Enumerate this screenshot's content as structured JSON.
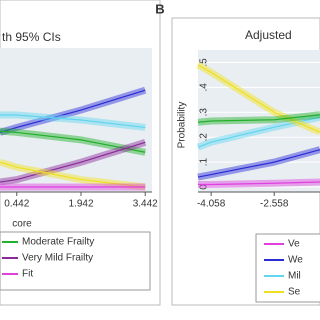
{
  "chart_data": [
    {
      "type": "line",
      "title": "th 95% CIs",
      "x_label": "core",
      "x": [
        0.05,
        0.442,
        1.942,
        3.442
      ],
      "xlim": [
        0.05,
        3.6
      ],
      "xticks": [
        0.442,
        1.942,
        3.442
      ],
      "ylim": [
        0,
        0.58
      ],
      "series": [
        {
          "color": "#2b2bd6",
          "values": [
            0.24,
            0.26,
            0.33,
            0.41
          ]
        },
        {
          "color": "#62d4f0",
          "values": [
            0.31,
            0.31,
            0.29,
            0.26
          ]
        },
        {
          "name": "Moderate Frailty",
          "color": "#22b02a",
          "values": [
            0.245,
            0.24,
            0.21,
            0.16
          ]
        },
        {
          "name": "Very Mild Frailty",
          "color": "#8a2a9a",
          "values": [
            0.04,
            0.05,
            0.12,
            0.2
          ]
        },
        {
          "color": "#f0e020",
          "values": [
            0.12,
            0.1,
            0.05,
            0.02
          ]
        },
        {
          "name": "Fit",
          "color": "#e040e0",
          "values": [
            0.02,
            0.02,
            0.02,
            0.02
          ]
        }
      ]
    },
    {
      "type": "line",
      "panel_label": "B",
      "title": "Adjusted",
      "y_label": "Probability",
      "x": [
        -4.37,
        -4.058,
        -2.558,
        -1.47
      ],
      "xlim": [
        -4.37,
        -1.47
      ],
      "xticks": [
        -4.058,
        -2.558
      ],
      "ylim": [
        -0.02,
        0.55
      ],
      "yticks": [
        0,
        {
          "value": 0.1,
          "label": ".1"
        },
        {
          "value": 0.2,
          "label": ".2"
        },
        {
          "value": 0.3,
          "label": ".3"
        },
        {
          "value": 0.4,
          "label": ".4"
        },
        {
          "value": 0.5,
          "label": ".5"
        }
      ],
      "series": [
        {
          "name": "Ve",
          "color": "#e040e0",
          "values": [
            0.01,
            0.01,
            0.015,
            0.02
          ]
        },
        {
          "name": "We",
          "color": "#2b2bd6",
          "values": [
            0.04,
            0.05,
            0.1,
            0.15
          ]
        },
        {
          "name": "Mil",
          "color": "#62d4f0",
          "values": [
            0.16,
            0.18,
            0.24,
            0.28
          ]
        },
        {
          "name": "Se",
          "color": "#f0e020",
          "values": [
            0.49,
            0.46,
            0.3,
            0.22
          ]
        },
        {
          "color": "#22b02a",
          "values": [
            0.26,
            0.265,
            0.27,
            0.29
          ]
        }
      ]
    }
  ]
}
